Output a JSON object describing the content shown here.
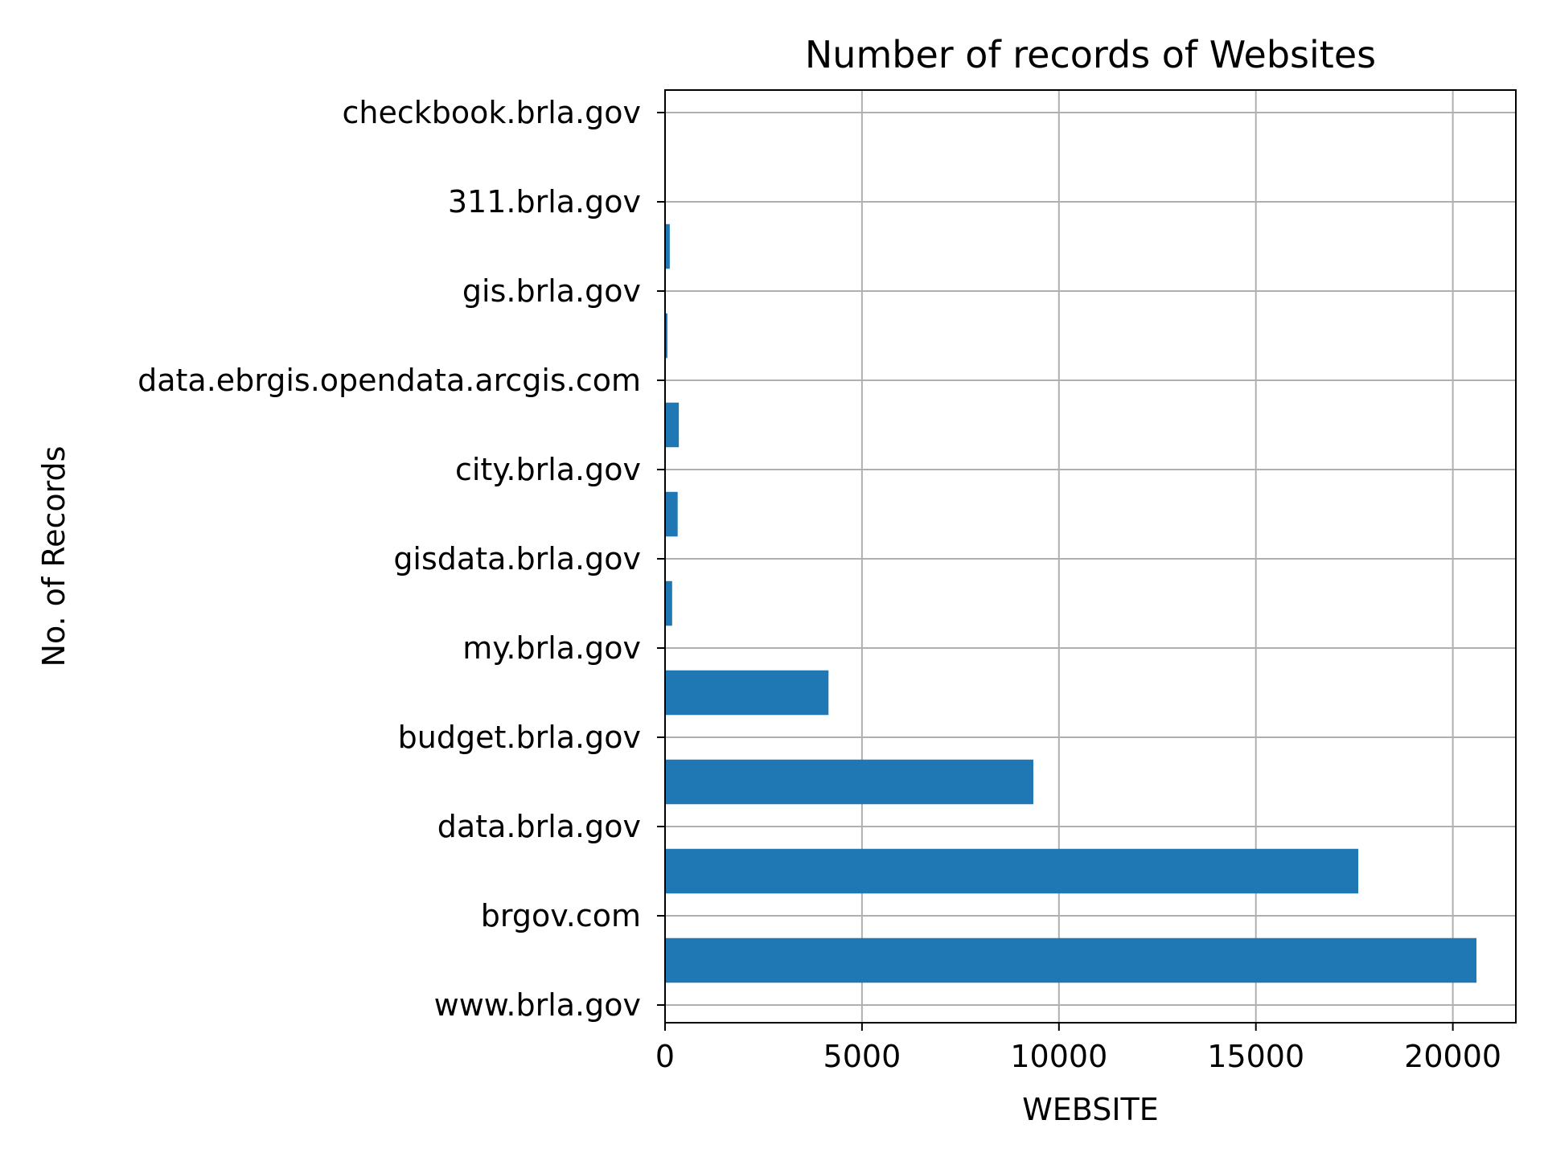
{
  "chart_data": {
    "type": "bar",
    "orientation": "horizontal",
    "title": "Number of records of Websites",
    "xlabel": "WEBSITE",
    "ylabel": "No. of Records",
    "categories": [
      "www.brla.gov",
      "brgov.com",
      "data.brla.gov",
      "budget.brla.gov",
      "my.brla.gov",
      "gisdata.brla.gov",
      "city.brla.gov",
      "data.ebrgis.opendata.arcgis.com",
      "gis.brla.gov",
      "311.brla.gov",
      "checkbook.brla.gov"
    ],
    "values": [
      20600,
      17600,
      9350,
      4150,
      180,
      320,
      350,
      60,
      120,
      0,
      0
    ],
    "xlim": [
      0,
      21600
    ],
    "xticks": [
      0,
      5000,
      10000,
      15000,
      20000
    ],
    "xtick_labels": [
      "0",
      "5000",
      "10000",
      "15000",
      "20000"
    ],
    "grid": true,
    "legend": false,
    "bar_color": "#1f77b4",
    "grid_color": "#b0b0b0"
  }
}
